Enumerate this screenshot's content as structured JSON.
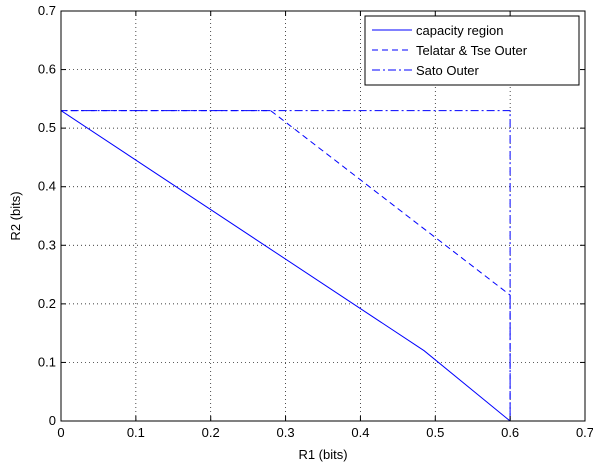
{
  "chart_data": {
    "type": "line",
    "title": "",
    "xlabel": "R1 (bits)",
    "ylabel": "R2 (bits)",
    "xlim": [
      0,
      0.7
    ],
    "ylim": [
      0,
      0.7
    ],
    "xticks": [
      0,
      0.1,
      0.2,
      0.3,
      0.4,
      0.5,
      0.6,
      0.7
    ],
    "yticks": [
      0,
      0.1,
      0.2,
      0.3,
      0.4,
      0.5,
      0.6,
      0.7
    ],
    "xtick_labels": [
      "0",
      "0.1",
      "0.2",
      "0.3",
      "0.4",
      "0.5",
      "0.6",
      "0.7"
    ],
    "ytick_labels": [
      "0",
      "0.1",
      "0.2",
      "0.3",
      "0.4",
      "0.5",
      "0.6",
      "0.7"
    ],
    "grid": true,
    "legend_position": "top-right",
    "line_color": "#0000ff",
    "series": [
      {
        "name": "capacity region",
        "style": "solid",
        "points": [
          [
            0,
            0
          ],
          [
            0,
            0.53
          ],
          [
            0.485,
            0.12
          ],
          [
            0.6,
            0
          ],
          [
            0,
            0
          ]
        ]
      },
      {
        "name": "Telatar & Tse Outer",
        "style": "dashed",
        "points": [
          [
            0,
            0.53
          ],
          [
            0.28,
            0.53
          ],
          [
            0.6,
            0.215
          ],
          [
            0.6,
            0
          ]
        ]
      },
      {
        "name": "Sato Outer",
        "style": "dashdot",
        "points": [
          [
            0,
            0
          ],
          [
            0,
            0.53
          ],
          [
            0.6,
            0.53
          ],
          [
            0.6,
            0
          ]
        ]
      }
    ]
  }
}
